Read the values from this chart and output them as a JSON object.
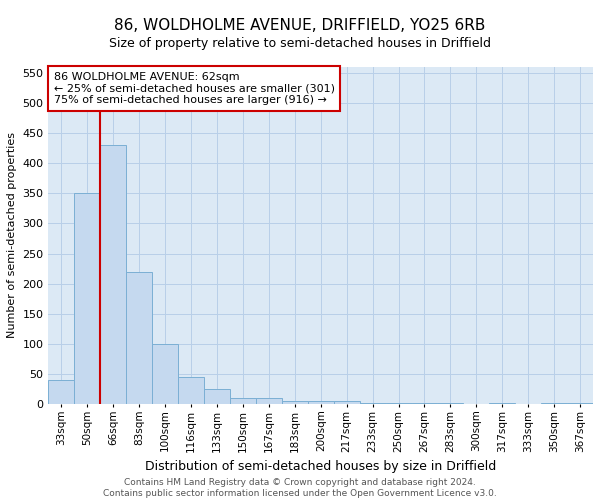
{
  "title": "86, WOLDHOLME AVENUE, DRIFFIELD, YO25 6RB",
  "subtitle": "Size of property relative to semi-detached houses in Driffield",
  "xlabel": "Distribution of semi-detached houses by size in Driffield",
  "ylabel": "Number of semi-detached properties",
  "footer_line1": "Contains HM Land Registry data © Crown copyright and database right 2024.",
  "footer_line2": "Contains public sector information licensed under the Open Government Licence v3.0.",
  "categories": [
    "33sqm",
    "50sqm",
    "66sqm",
    "83sqm",
    "100sqm",
    "116sqm",
    "133sqm",
    "150sqm",
    "167sqm",
    "183sqm",
    "200sqm",
    "217sqm",
    "233sqm",
    "250sqm",
    "267sqm",
    "283sqm",
    "300sqm",
    "317sqm",
    "333sqm",
    "350sqm",
    "367sqm"
  ],
  "values": [
    40,
    350,
    430,
    220,
    100,
    45,
    25,
    10,
    10,
    5,
    5,
    5,
    1,
    1,
    1,
    1,
    0,
    1,
    0,
    1,
    1
  ],
  "bar_color": "#c5d9ef",
  "bar_edge_color": "#7bafd4",
  "grid_color": "#b8cfe8",
  "background_color": "#dce9f5",
  "annotation_text": "86 WOLDHOLME AVENUE: 62sqm\n← 25% of semi-detached houses are smaller (301)\n75% of semi-detached houses are larger (916) →",
  "vline_x": 1.5,
  "vline_color": "#cc0000",
  "annotation_box_facecolor": "#ffffff",
  "annotation_box_edgecolor": "#cc0000",
  "ylim": [
    0,
    560
  ],
  "yticks": [
    0,
    50,
    100,
    150,
    200,
    250,
    300,
    350,
    400,
    450,
    500,
    550
  ],
  "title_fontsize": 11,
  "subtitle_fontsize": 9,
  "xlabel_fontsize": 9,
  "ylabel_fontsize": 8,
  "tick_fontsize": 8,
  "xtick_fontsize": 7.5,
  "annotation_fontsize": 8,
  "footer_fontsize": 6.5
}
